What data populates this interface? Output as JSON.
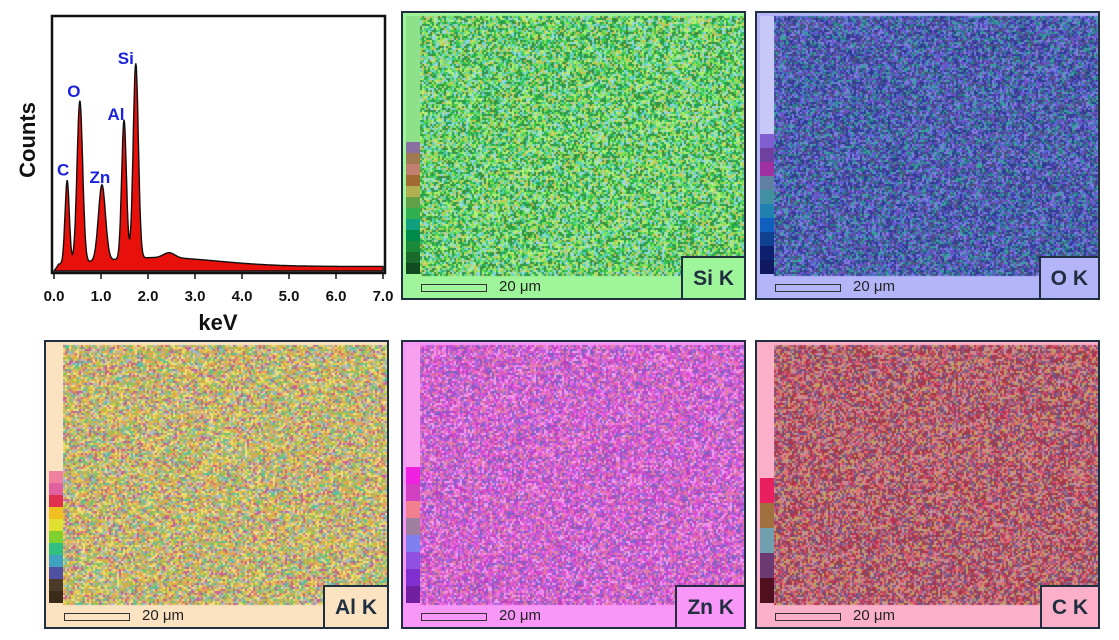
{
  "chart_data": [
    {
      "type": "line",
      "title": "",
      "xlabel": "keV",
      "ylabel": "Counts",
      "xlim": [
        0.0,
        7.0
      ],
      "x_ticks": [
        "0.0",
        "1.0",
        "2.0",
        "3.0",
        "4.0",
        "5.0",
        "6.0",
        "7.0"
      ],
      "fill_color": "#e8100a",
      "peaks": [
        {
          "label": "C",
          "x": 0.28,
          "y": 0.33
        },
        {
          "label": "O",
          "x": 0.55,
          "y": 0.64
        },
        {
          "label": "Zn",
          "x": 1.02,
          "y": 0.3
        },
        {
          "label": "Al",
          "x": 1.49,
          "y": 0.55
        },
        {
          "label": "Si",
          "x": 1.74,
          "y": 0.77
        }
      ],
      "label_color": "#1a22e0"
    },
    {
      "type": "heatmap",
      "element": "Si K",
      "scale": "20 μm",
      "bg_color": "#9ef59a",
      "dots": [
        "#36c74a",
        "#7fe35a",
        "#20a050",
        "#b4f07a",
        "#5ad0b8",
        "#c8c85a",
        "#3c8c3c",
        "#9ad8e0"
      ]
    },
    {
      "type": "heatmap",
      "element": "O K",
      "scale": "20 μm",
      "bg_color": "#b4b4f8",
      "dots": [
        "#3e3ea0",
        "#5a64d8",
        "#2a7a8a",
        "#7050c0",
        "#3aa0a0",
        "#8080e0",
        "#505080",
        "#2a3a90"
      ]
    },
    {
      "type": "heatmap",
      "element": "Al K",
      "scale": "20 μm",
      "bg_color": "#fbe3c2",
      "dots": [
        "#d8b040",
        "#e0d050",
        "#b0b8c8",
        "#c86090",
        "#58c0a0",
        "#e8a060",
        "#98c050",
        "#f0e080"
      ]
    },
    {
      "type": "heatmap",
      "element": "Zn K",
      "scale": "20 μm",
      "bg_color": "#f897f8",
      "dots": [
        "#d850d8",
        "#f070e8",
        "#a068e0",
        "#e080a0",
        "#c040c0",
        "#f0a0f0",
        "#8060c0",
        "#e060b0"
      ]
    },
    {
      "type": "heatmap",
      "element": "C K",
      "scale": "20 μm",
      "bg_color": "#fbafc8",
      "dots": [
        "#b03050",
        "#d05070",
        "#906890",
        "#c0a060",
        "#e07070",
        "#a04040",
        "#c890a0",
        "#705080"
      ]
    }
  ],
  "colorbars": {
    "si": [
      "#8fe08a",
      "#8a70a0",
      "#a07a50",
      "#c08070",
      "#a06a30",
      "#b0b050",
      "#60a048",
      "#30b050",
      "#10a080",
      "#008a4a",
      "#1a8a3a",
      "#1a6a2a",
      "#104a20"
    ],
    "o": [
      "#c8c8f8",
      "#8060d0",
      "#7040a0",
      "#a030a0",
      "#6080a0",
      "#4090a0",
      "#2080b0",
      "#1060c0",
      "#104090",
      "#102070",
      "#101860"
    ],
    "al": [
      "#fbe3c2",
      "#f080a0",
      "#e060a0",
      "#e03050",
      "#f0c020",
      "#e0e030",
      "#80d030",
      "#30c080",
      "#40a0c0",
      "#5050a0",
      "#4a3a2a",
      "#3a2a1a"
    ],
    "zn": [
      "#f8a0f0",
      "#f020e0",
      "#d040c0",
      "#f08090",
      "#a080a0",
      "#8080f0",
      "#9050e0",
      "#8030d0",
      "#7020a0"
    ],
    "c": [
      "#fbafc8",
      "#e82060",
      "#a07040",
      "#70a0b0",
      "#6a3a70",
      "#501020"
    ]
  }
}
